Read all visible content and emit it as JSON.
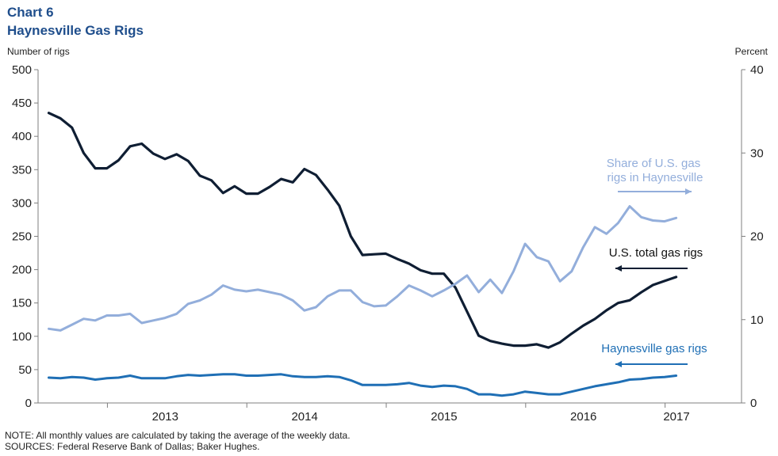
{
  "header": {
    "chart_number": "Chart 6",
    "chart_title": "Haynesville Gas Rigs"
  },
  "footer": {
    "note": "NOTE: All monthly values are calculated by taking the average of the weekly data.",
    "sources": "SOURCES: Federal Reserve Bank of Dallas; Baker Hughes."
  },
  "colors": {
    "us_total": "#0f1e33",
    "haynesville": "#1f6fb5",
    "share": "#93aedb",
    "axis": "#7f7f7f"
  },
  "chart_data": {
    "type": "line",
    "xlabel": "",
    "ylabel": "Number of rigs",
    "ylabel_right": "Percent",
    "ylim": [
      0,
      500
    ],
    "ylim_right": [
      0,
      40
    ],
    "yticks": [
      0,
      50,
      100,
      150,
      200,
      250,
      300,
      350,
      400,
      450,
      500
    ],
    "yticks_right": [
      0,
      10,
      20,
      30,
      40
    ],
    "year_labels": [
      "2013",
      "2014",
      "2015",
      "2016",
      "2017"
    ],
    "x_start": "2012-08",
    "x_end": "2017-03",
    "grid": false,
    "series": [
      {
        "name": "U.S. total gas rigs",
        "axis": "left",
        "values": [
          435,
          427,
          413,
          375,
          352,
          352,
          364,
          385,
          389,
          374,
          366,
          373,
          363,
          341,
          334,
          315,
          325,
          314,
          314,
          324,
          336,
          331,
          351,
          342,
          320,
          296,
          250,
          222,
          223,
          224,
          216,
          209,
          199,
          194,
          194,
          173,
          137,
          101,
          93,
          89,
          86,
          86,
          88,
          83,
          91,
          104,
          116,
          126,
          139,
          150,
          154,
          166,
          177,
          183,
          189
        ]
      },
      {
        "name": "Share of U.S. gas rigs in Haynesville",
        "axis": "right",
        "values": [
          8.9,
          8.7,
          9.4,
          10.1,
          9.9,
          10.5,
          10.5,
          10.7,
          9.6,
          9.9,
          10.2,
          10.7,
          11.9,
          12.3,
          13.0,
          14.1,
          13.6,
          13.4,
          13.6,
          13.3,
          13.0,
          12.3,
          11.1,
          11.5,
          12.8,
          13.5,
          13.5,
          12.1,
          11.6,
          11.7,
          12.8,
          14.1,
          13.5,
          12.8,
          13.5,
          14.3,
          15.3,
          13.3,
          14.8,
          13.2,
          15.8,
          19.1,
          17.5,
          17.0,
          14.6,
          15.8,
          18.7,
          21.1,
          20.3,
          21.6,
          23.6,
          22.3,
          21.9,
          21.8,
          22.2
        ]
      },
      {
        "name": "Haynesville gas rigs",
        "axis": "left",
        "values": [
          38,
          37,
          39,
          38,
          35,
          37,
          38,
          41,
          37,
          37,
          37,
          40,
          42,
          41,
          42,
          43,
          43,
          41,
          41,
          42,
          43,
          40,
          39,
          39,
          40,
          39,
          34,
          27,
          27,
          27,
          28,
          30,
          26,
          24,
          26,
          25,
          21,
          13,
          13,
          11,
          13,
          17,
          15,
          13,
          13,
          17,
          21,
          25,
          28,
          31,
          35,
          36,
          38,
          39,
          41
        ]
      }
    ],
    "annotations": [
      {
        "text_lines": [
          "Share of U.S. gas",
          "rigs in Haynesville"
        ],
        "series": "Share of U.S. gas rigs in Haynesville"
      },
      {
        "text_lines": [
          "U.S. total gas rigs"
        ],
        "series": "U.S. total gas rigs"
      },
      {
        "text_lines": [
          "Haynesville gas rigs"
        ],
        "series": "Haynesville gas rigs"
      }
    ]
  }
}
